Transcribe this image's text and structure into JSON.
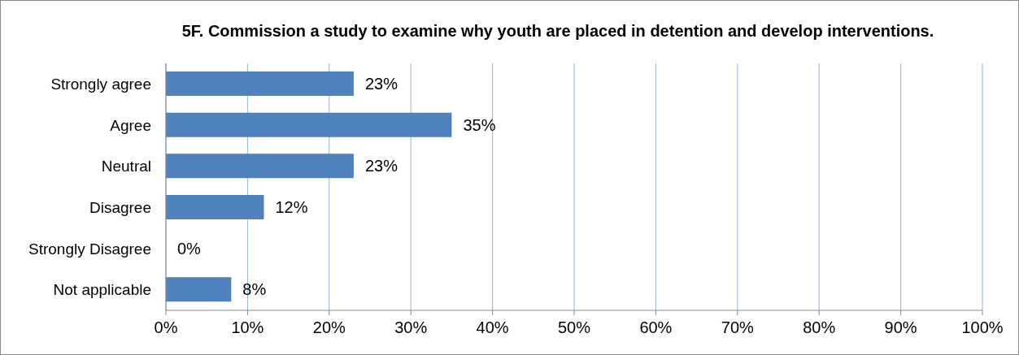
{
  "chart_data": {
    "type": "bar",
    "orientation": "horizontal",
    "title": "5F. Commission a study to examine why youth are placed in detention and develop interventions.",
    "categories": [
      "Strongly agree",
      "Agree",
      "Neutral",
      "Disagree",
      "Strongly Disagree",
      "Not applicable"
    ],
    "values": [
      23,
      35,
      23,
      12,
      0,
      8
    ],
    "value_labels": [
      "23%",
      "35%",
      "23%",
      "12%",
      "0%",
      "8%"
    ],
    "color": "#4f81bd",
    "xlim": [
      0,
      100
    ],
    "xticks": [
      {
        "value": 0,
        "label": "0%"
      },
      {
        "value": 10,
        "label": "10%"
      },
      {
        "value": 20,
        "label": "20%"
      },
      {
        "value": 30,
        "label": "30%"
      },
      {
        "value": 40,
        "label": "40%"
      },
      {
        "value": 50,
        "label": "50%"
      },
      {
        "value": 60,
        "label": "60%"
      },
      {
        "value": 70,
        "label": "70%"
      },
      {
        "value": 80,
        "label": "80%"
      },
      {
        "value": 90,
        "label": "90%"
      },
      {
        "value": 100,
        "label": "100%"
      }
    ],
    "grid": "x",
    "legend": false
  }
}
